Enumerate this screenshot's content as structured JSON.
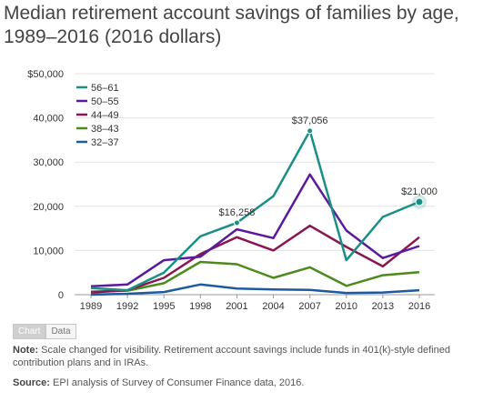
{
  "header": {
    "title": "Median retirement account savings of families by age, 1989–2016 (2016 dollars)"
  },
  "tabs": [
    {
      "label": "Chart",
      "active": true
    },
    {
      "label": "Data",
      "active": false
    }
  ],
  "footer": {
    "note_label": "Note:",
    "note_text": " Scale changed for visibility. Retirement account savings include funds in 401(k)-style defined contribution plans and in IRAs.",
    "source_label": "Source:",
    "source_text": " EPI analysis of Survey of Consumer Finance data, 2016."
  },
  "chart_data": {
    "type": "line",
    "title": "Median retirement account savings of families by age, 1989–2016 (2016 dollars)",
    "x": [
      "1989",
      "1992",
      "1995",
      "1998",
      "2001",
      "2004",
      "2007",
      "2010",
      "2013",
      "2016"
    ],
    "ylim": [
      0,
      50000
    ],
    "yticks": [
      0,
      10000,
      20000,
      30000,
      40000,
      50000
    ],
    "ytick_labels": [
      "0",
      "10,000",
      "20,000",
      "30,000",
      "40,000",
      "$50,000"
    ],
    "grid": true,
    "legend_position": "top-left",
    "series": [
      {
        "name": "56–61",
        "color": "#1a8f86",
        "values": [
          1500,
          1000,
          5000,
          13200,
          16258,
          22300,
          37056,
          7800,
          17600,
          21000
        ]
      },
      {
        "name": "50–55",
        "color": "#5a1aa0",
        "values": [
          1900,
          2300,
          7800,
          8600,
          14800,
          12800,
          27200,
          14500,
          8300,
          11000
        ]
      },
      {
        "name": "44–49",
        "color": "#8a1650",
        "values": [
          500,
          1000,
          3800,
          9200,
          13000,
          10000,
          15600,
          10800,
          6400,
          13000
        ]
      },
      {
        "name": "38–43",
        "color": "#4d8a1c",
        "values": [
          700,
          900,
          2600,
          7400,
          6900,
          3800,
          6200,
          2000,
          4400,
          5100
        ]
      },
      {
        "name": "32–37",
        "color": "#1e5aa0",
        "values": [
          0,
          200,
          600,
          2300,
          1400,
          1200,
          1100,
          400,
          500,
          1000
        ]
      }
    ],
    "annotations": [
      {
        "series": "56–61",
        "x": "2001",
        "label": "$16,258"
      },
      {
        "series": "56–61",
        "x": "2007",
        "label": "$37,056"
      },
      {
        "series": "56–61",
        "x": "2016",
        "label": "$21,000"
      }
    ]
  }
}
